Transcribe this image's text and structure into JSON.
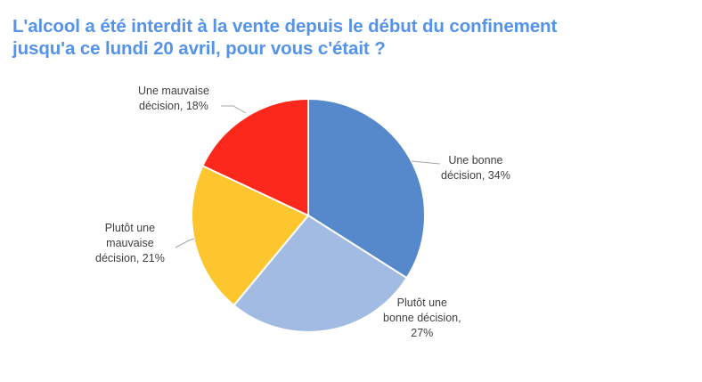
{
  "title": {
    "line1": "L'alcool a été interdit à la vente depuis le début du confinement",
    "line2": "jusqu'a ce lundi 20 avril, pour vous c'était ?"
  },
  "labels": {
    "bonne": {
      "line1": "Une bonne",
      "line2": "décision, 34%"
    },
    "plutot_bonne": {
      "line1": "Plutôt une",
      "line2": "bonne décision,",
      "line3": "27%"
    },
    "plutot_mauvaise": {
      "line1": "Plutôt une",
      "line2": "mauvaise",
      "line3": "décision, 21%"
    },
    "mauvaise": {
      "line1": "Une mauvaise",
      "line2": "décision, 18%"
    }
  },
  "chart_data": {
    "type": "pie",
    "title": "L'alcool a été interdit à la vente depuis le début du confinement jusqu'a ce lundi 20 avril, pour vous c'était ?",
    "categories": [
      "Une bonne décision",
      "Plutôt une bonne décision",
      "Plutôt une mauvaise décision",
      "Une mauvaise décision"
    ],
    "values": [
      34,
      27,
      21,
      18
    ],
    "unit": "%",
    "colors": [
      "#5589cc",
      "#a2bbe2",
      "#fdc62f",
      "#fc281b"
    ],
    "start_angle": "12 o'clock, clockwise",
    "legend": "none (data labels with leader lines)"
  }
}
